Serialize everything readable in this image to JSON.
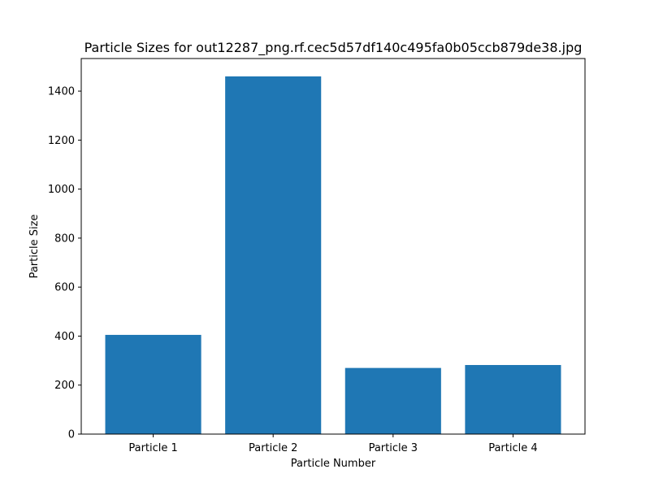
{
  "chart_data": {
    "type": "bar",
    "title": "Particle Sizes for out12287_png.rf.cec5d57df140c495fa0b05ccb879de38.jpg",
    "xlabel": "Particle Number",
    "ylabel": "Particle Size",
    "categories": [
      "Particle 1",
      "Particle 2",
      "Particle 3",
      "Particle 4"
    ],
    "values": [
      405,
      1460,
      270,
      282
    ],
    "ylim": [
      0,
      1533
    ],
    "yticks": [
      0,
      200,
      400,
      600,
      800,
      1000,
      1200,
      1400
    ],
    "grid": false,
    "bar_color": "#1f77b4"
  }
}
